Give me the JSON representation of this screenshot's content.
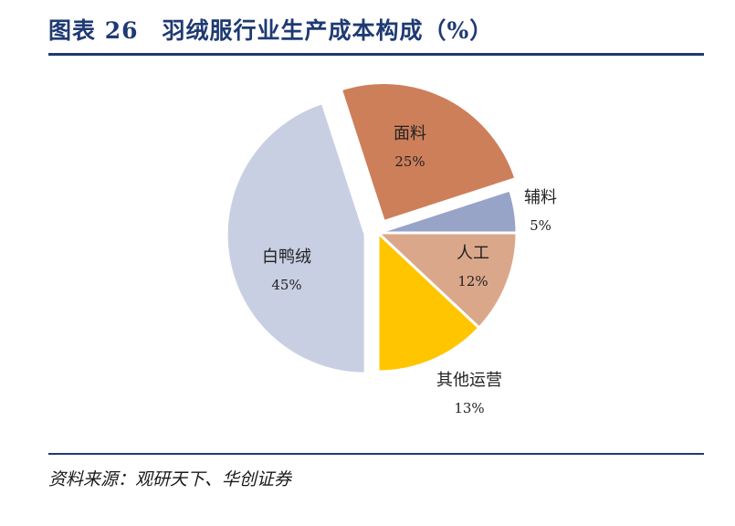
{
  "header": {
    "title": "图表 26　羽绒服行业生产成本构成（%）"
  },
  "footer": {
    "source": "资料来源：观研天下、华创证券"
  },
  "chart_data": {
    "type": "pie",
    "title": "图表 26　羽绒服行业生产成本构成（%）",
    "slices": [
      {
        "label": "面料",
        "value": 25,
        "value_label": "25%",
        "color": "#cd7f5a"
      },
      {
        "label": "辅料",
        "value": 5,
        "value_label": "5%",
        "color": "#98a3c8"
      },
      {
        "label": "人工",
        "value": 12,
        "value_label": "12%",
        "color": "#dba78a"
      },
      {
        "label": "其他运营",
        "value": 13,
        "value_label": "13%",
        "color": "#ffc600"
      },
      {
        "label": "白鸭绒",
        "value": 45,
        "value_label": "45%",
        "color": "#c9cfe3"
      }
    ],
    "exploded": [
      "面料",
      "白鸭绒"
    ]
  }
}
